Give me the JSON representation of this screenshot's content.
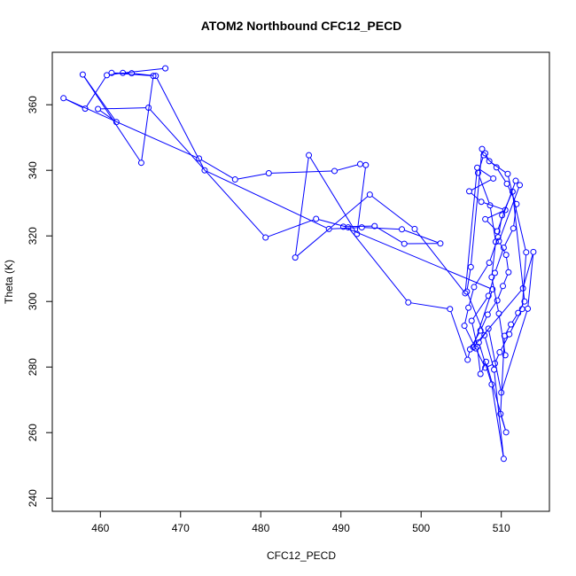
{
  "chart_data": {
    "type": "line",
    "title": "ATOM2 Northbound CFC12_PECD",
    "xlabel": "CFC12_PECD",
    "ylabel": "Theta (K)",
    "xlim": [
      454,
      516
    ],
    "ylim": [
      236,
      376
    ],
    "x_ticks": [
      460,
      470,
      480,
      490,
      500,
      510
    ],
    "y_ticks": [
      240,
      260,
      280,
      300,
      320,
      340,
      360
    ],
    "grid": false,
    "series": [
      {
        "color": "#0000ff",
        "marker": "open-circle",
        "x": [
          468.1,
          462.8,
          460.8,
          458.1,
          455.4,
          472.3,
          476.8,
          481.0,
          489.2,
          492.4,
          493.1,
          492.0,
          486.0,
          484.3,
          493.6,
          499.2,
          505.5,
          507.0,
          509.0,
          506.0,
          507.5,
          510.5,
          508.0,
          509.5,
          511.8,
          512.3,
          509.7,
          510.6,
          510.9,
          510.2,
          509.5,
          508.3,
          507.4,
          506.1,
          505.8,
          503.6,
          498.4,
          490.9,
          486.9,
          480.6,
          466.0,
          459.7,
          462.0,
          457.8,
          465.1,
          466.6,
          461.4,
          463.9,
          466.9,
          473.0,
          488.5,
          492.6,
          497.6,
          502.4,
          497.9,
          494.2,
          490.3,
          508.9,
          506.5,
          512.7,
          514.0,
          513.3,
          510.0,
          508.4,
          507.2,
          508.8,
          510.3,
          509.1,
          507.9,
          505.7,
          506.2,
          507.6,
          508.0,
          508.5,
          510.8,
          513.1,
          512.6,
          511.0,
          509.8,
          509.2,
          508.0,
          506.8,
          505.4,
          505.9,
          506.6,
          508.5,
          509.6,
          510.1,
          511.4,
          512.9,
          512.1,
          511.2,
          510.4,
          509.9,
          510.6,
          508.1,
          507.4,
          507.0,
          506.3,
          508.4,
          509.2,
          510.3,
          511.5,
          511.9,
          510.7,
          509.4,
          507.8,
          507.1,
          508.6,
          509.3,
          508.8,
          509.7,
          510.5
        ],
        "y": [
          371.1,
          369.7,
          369.0,
          358.8,
          362.0,
          343.6,
          337.2,
          339.1,
          339.8,
          341.9,
          341.6,
          320.6,
          344.6,
          313.4,
          332.6,
          322.1,
          302.5,
          340.8,
          337.5,
          333.6,
          330.4,
          327.9,
          325.1,
          321.4,
          336.8,
          335.5,
          318.4,
          314.2,
          308.9,
          304.7,
          300.3,
          296.0,
          291.1,
          285.4,
          282.2,
          297.7,
          299.7,
          322.6,
          325.2,
          319.5,
          359.1,
          358.7,
          354.7,
          369.2,
          342.3,
          368.8,
          369.7,
          369.6,
          368.8,
          340.0,
          322.1,
          322.6,
          322.0,
          317.7,
          317.6,
          323.0,
          322.8,
          303.7,
          286.1,
          304.0,
          315.1,
          297.8,
          272.2,
          291.7,
          287.5,
          274.7,
          252.0,
          279.2,
          289.7,
          303.0,
          310.5,
          346.5,
          345.2,
          342.8,
          338.9,
          315.0,
          297.7,
          290.0,
          284.5,
          281.1,
          279.8,
          285.7,
          292.6,
          298.1,
          304.4,
          311.8,
          319.6,
          326.3,
          333.5,
          300.0,
          296.5,
          293.0,
          289.5,
          265.7,
          260.1,
          281.6,
          277.9,
          286.2,
          294.1,
          301.7,
          308.7,
          316.4,
          322.3,
          329.7,
          335.9,
          340.9,
          344.6,
          339.2,
          329.3,
          318.2,
          307.4,
          296.3,
          283.6
        ]
      }
    ]
  }
}
